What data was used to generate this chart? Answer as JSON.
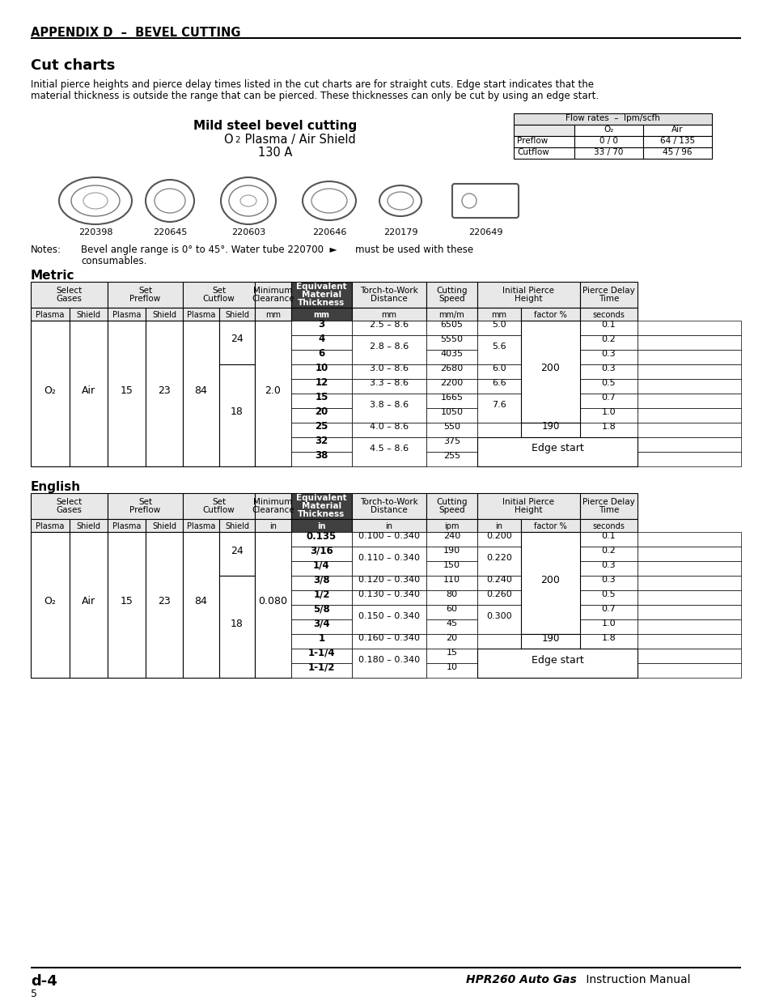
{
  "appendix_title": "APPENDIX D  –  BEVEL CUTTING",
  "section_title": "Cut charts",
  "intro_line1": "Initial pierce heights and pierce delay times listed in the cut charts are for straight cuts. Edge start indicates that the",
  "intro_line2": "material thickness is outside the range that can be pierced. These thicknesses can only be cut by using an edge start.",
  "chart_title_bold": "Mild steel bevel cutting",
  "chart_amperage": "130 A",
  "part_numbers": [
    "220398",
    "220645",
    "220603",
    "220646",
    "220179",
    "220649"
  ],
  "notes_line1": "Bevel angle range is 0° to 45°. Water tube 220700  ►      must be used with these",
  "notes_line2": "consumables.",
  "flow_rates_title": "Flow rates  –  lpm/scfh",
  "flow_preflow_o2": "0 / 0",
  "flow_preflow_air": "64 / 135",
  "flow_cutflow_o2": "33 / 70",
  "flow_cutflow_air": "45 / 96",
  "metric_section": "Metric",
  "english_section": "English",
  "footer_left": "d-4",
  "footer_right_bold": "HPR260 Auto Gas",
  "footer_right_normal": " Instruction Manual",
  "page_number": "5",
  "metric_rows": [
    {
      "thick": "3",
      "torch": "2.5 – 8.6",
      "torch_span": 1,
      "speed": "6505",
      "iph_mm": "5.0",
      "iph_mm_span": 1,
      "delay": "0.1"
    },
    {
      "thick": "4",
      "torch": "2.8 – 8.6",
      "torch_span": 2,
      "speed": "5550",
      "iph_mm": "5.6",
      "iph_mm_span": 2,
      "delay": "0.2"
    },
    {
      "thick": "6",
      "torch": "",
      "torch_span": 0,
      "speed": "4035",
      "iph_mm": "",
      "iph_mm_span": 0,
      "delay": "0.3"
    },
    {
      "thick": "10",
      "torch": "3.0 – 8.6",
      "torch_span": 1,
      "speed": "2680",
      "iph_mm": "6.0",
      "iph_mm_span": 1,
      "delay": "0.3"
    },
    {
      "thick": "12",
      "torch": "3.3 – 8.6",
      "torch_span": 1,
      "speed": "2200",
      "iph_mm": "6.6",
      "iph_mm_span": 1,
      "delay": "0.5"
    },
    {
      "thick": "15",
      "torch": "3.8 – 8.6",
      "torch_span": 2,
      "speed": "1665",
      "iph_mm": "7.6",
      "iph_mm_span": 2,
      "delay": "0.7"
    },
    {
      "thick": "20",
      "torch": "",
      "torch_span": 0,
      "speed": "1050",
      "iph_mm": "",
      "iph_mm_span": 0,
      "delay": "1.0"
    },
    {
      "thick": "25",
      "torch": "4.0 – 8.6",
      "torch_span": 1,
      "speed": "550",
      "iph_mm": "",
      "iph_mm_span": 0,
      "delay": "1.8"
    },
    {
      "thick": "32",
      "torch": "4.5 – 8.6",
      "torch_span": 2,
      "speed": "375",
      "iph_mm": "",
      "iph_mm_span": 0,
      "delay": ""
    },
    {
      "thick": "38",
      "torch": "",
      "torch_span": 0,
      "speed": "255",
      "iph_mm": "",
      "iph_mm_span": 0,
      "delay": ""
    }
  ],
  "english_rows": [
    {
      "thick": "0.135",
      "torch": "0.100 – 0.340",
      "torch_span": 1,
      "speed": "240",
      "iph_mm": "0.200",
      "iph_mm_span": 1,
      "delay": "0.1"
    },
    {
      "thick": "3/16",
      "torch": "0.110 – 0.340",
      "torch_span": 2,
      "speed": "190",
      "iph_mm": "0.220",
      "iph_mm_span": 2,
      "delay": "0.2"
    },
    {
      "thick": "1/4",
      "torch": "",
      "torch_span": 0,
      "speed": "150",
      "iph_mm": "",
      "iph_mm_span": 0,
      "delay": "0.3"
    },
    {
      "thick": "3/8",
      "torch": "0.120 – 0.340",
      "torch_span": 1,
      "speed": "110",
      "iph_mm": "0.240",
      "iph_mm_span": 1,
      "delay": "0.3"
    },
    {
      "thick": "1/2",
      "torch": "0.130 – 0.340",
      "torch_span": 1,
      "speed": "80",
      "iph_mm": "0.260",
      "iph_mm_span": 1,
      "delay": "0.5"
    },
    {
      "thick": "5/8",
      "torch": "0.150 – 0.340",
      "torch_span": 2,
      "speed": "60",
      "iph_mm": "0.300",
      "iph_mm_span": 2,
      "delay": "0.7"
    },
    {
      "thick": "3/4",
      "torch": "",
      "torch_span": 0,
      "speed": "45",
      "iph_mm": "",
      "iph_mm_span": 0,
      "delay": "1.0"
    },
    {
      "thick": "1",
      "torch": "0.160 – 0.340",
      "torch_span": 1,
      "speed": "20",
      "iph_mm": "",
      "iph_mm_span": 0,
      "delay": "1.8"
    },
    {
      "thick": "1-1/4",
      "torch": "0.180 – 0.340",
      "torch_span": 2,
      "speed": "15",
      "iph_mm": "",
      "iph_mm_span": 0,
      "delay": ""
    },
    {
      "thick": "1-1/2",
      "torch": "",
      "torch_span": 0,
      "speed": "10",
      "iph_mm": "",
      "iph_mm_span": 0,
      "delay": ""
    }
  ]
}
